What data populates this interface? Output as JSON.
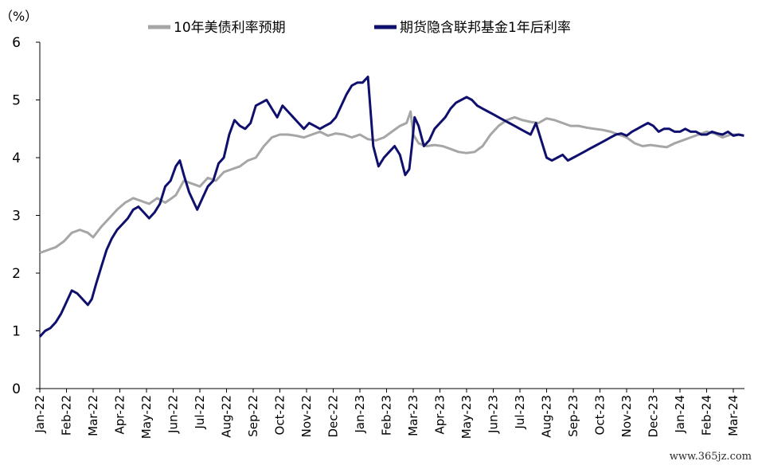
{
  "chart_data": {
    "type": "line",
    "y_unit_label": "（%）",
    "ylim": [
      0,
      6
    ],
    "y_ticks": [
      "0",
      "1",
      "2",
      "3",
      "4",
      "5",
      "6"
    ],
    "x_ticks": [
      "Jan-22",
      "Feb-22",
      "Mar-22",
      "Apr-22",
      "May-22",
      "Jun-22",
      "Jul-22",
      "Aug-22",
      "Sep-22",
      "Oct-22",
      "Nov-22",
      "Dec-22",
      "Jan-23",
      "Feb-23",
      "Mar-23",
      "Apr-23",
      "May-23",
      "Jun-23",
      "Jul-23",
      "Aug-23",
      "Sep-23",
      "Oct-23",
      "Nov-23",
      "Dec-23",
      "Jan-24",
      "Feb-24",
      "Mar-24"
    ],
    "grid": false,
    "legend_position": "top",
    "series": [
      {
        "name": "10年美债利率预期",
        "color": "#a6a6a6",
        "x": [
          0,
          0.3,
          0.6,
          0.9,
          1.2,
          1.5,
          1.8,
          2.0,
          2.3,
          2.6,
          2.9,
          3.2,
          3.5,
          3.8,
          4.1,
          4.4,
          4.7,
          4.95,
          5.1,
          5.4,
          5.7,
          6.0,
          6.3,
          6.6,
          6.9,
          7.2,
          7.5,
          7.8,
          8.1,
          8.4,
          8.7,
          9.0,
          9.3,
          9.6,
          9.9,
          10.2,
          10.5,
          10.8,
          11.1,
          11.4,
          11.7,
          12.0,
          12.3,
          12.6,
          12.9,
          13.2,
          13.5,
          13.75,
          13.9,
          14.0,
          14.2,
          14.5,
          14.8,
          15.1,
          15.4,
          15.7,
          16.0,
          16.3,
          16.6,
          16.9,
          17.2,
          17.5,
          17.8,
          18.1,
          18.4,
          18.7,
          19.0,
          19.3,
          19.6,
          19.9,
          20.2,
          20.5,
          20.8,
          21.1,
          21.4,
          21.7,
          22.0,
          22.3,
          22.6,
          22.9,
          23.2,
          23.5,
          23.8,
          24.1,
          24.4,
          24.7,
          25.0,
          25.3,
          25.6,
          25.9,
          26.2,
          26.4
        ],
        "values": [
          2.35,
          2.4,
          2.45,
          2.55,
          2.7,
          2.75,
          2.7,
          2.62,
          2.8,
          2.95,
          3.1,
          3.22,
          3.3,
          3.25,
          3.2,
          3.3,
          3.22,
          3.3,
          3.35,
          3.6,
          3.55,
          3.5,
          3.65,
          3.6,
          3.75,
          3.8,
          3.85,
          3.95,
          4.0,
          4.2,
          4.35,
          4.4,
          4.4,
          4.38,
          4.35,
          4.4,
          4.45,
          4.38,
          4.42,
          4.4,
          4.35,
          4.4,
          4.32,
          4.3,
          4.35,
          4.45,
          4.55,
          4.6,
          4.8,
          4.4,
          4.25,
          4.2,
          4.22,
          4.2,
          4.15,
          4.1,
          4.08,
          4.1,
          4.2,
          4.4,
          4.55,
          4.65,
          4.7,
          4.65,
          4.62,
          4.6,
          4.68,
          4.65,
          4.6,
          4.55,
          4.55,
          4.52,
          4.5,
          4.48,
          4.45,
          4.4,
          4.35,
          4.25,
          4.2,
          4.22,
          4.2,
          4.18,
          4.25,
          4.3,
          4.35,
          4.4,
          4.45,
          4.42,
          4.35,
          4.4,
          4.4,
          4.38
        ]
      },
      {
        "name": "期货隐含联邦基金1年后利率",
        "color": "#0f0f6e",
        "x": [
          0,
          0.2,
          0.4,
          0.6,
          0.8,
          1.0,
          1.2,
          1.4,
          1.6,
          1.8,
          1.95,
          2.1,
          2.3,
          2.5,
          2.7,
          2.9,
          3.1,
          3.3,
          3.5,
          3.7,
          3.9,
          4.1,
          4.3,
          4.5,
          4.7,
          4.9,
          5.1,
          5.25,
          5.4,
          5.6,
          5.8,
          5.9,
          6.1,
          6.3,
          6.5,
          6.7,
          6.9,
          7.1,
          7.3,
          7.5,
          7.7,
          7.9,
          8.1,
          8.3,
          8.5,
          8.7,
          8.9,
          9.1,
          9.3,
          9.5,
          9.7,
          9.9,
          10.1,
          10.3,
          10.5,
          10.7,
          10.9,
          11.1,
          11.3,
          11.5,
          11.7,
          11.9,
          12.1,
          12.3,
          12.5,
          12.7,
          12.9,
          13.1,
          13.3,
          13.5,
          13.7,
          13.85,
          13.95,
          14.05,
          14.2,
          14.4,
          14.6,
          14.8,
          15.0,
          15.2,
          15.4,
          15.6,
          15.8,
          16.0,
          16.2,
          16.4,
          16.6,
          16.8,
          17.0,
          17.2,
          17.4,
          17.6,
          17.8,
          18.0,
          18.2,
          18.4,
          18.6,
          18.8,
          19.0,
          19.2,
          19.4,
          19.6,
          19.8,
          20.0,
          20.2,
          20.4,
          20.6,
          20.8,
          21.0,
          21.2,
          21.4,
          21.6,
          21.8,
          22.0,
          22.2,
          22.4,
          22.6,
          22.8,
          23.0,
          23.2,
          23.4,
          23.6,
          23.8,
          24.0,
          24.2,
          24.4,
          24.6,
          24.8,
          25.0,
          25.2,
          25.4,
          25.6,
          25.8,
          26.0,
          26.2,
          26.4
        ],
        "values": [
          0.9,
          1.0,
          1.05,
          1.15,
          1.3,
          1.5,
          1.7,
          1.65,
          1.55,
          1.45,
          1.55,
          1.8,
          2.1,
          2.4,
          2.6,
          2.75,
          2.85,
          2.95,
          3.1,
          3.15,
          3.05,
          2.95,
          3.05,
          3.2,
          3.5,
          3.6,
          3.85,
          3.95,
          3.7,
          3.4,
          3.2,
          3.1,
          3.3,
          3.5,
          3.6,
          3.9,
          4.0,
          4.4,
          4.65,
          4.55,
          4.5,
          4.6,
          4.9,
          4.95,
          5.0,
          4.85,
          4.7,
          4.9,
          4.8,
          4.7,
          4.6,
          4.5,
          4.6,
          4.55,
          4.5,
          4.55,
          4.6,
          4.7,
          4.9,
          5.1,
          5.25,
          5.3,
          5.3,
          5.4,
          4.2,
          3.85,
          4.0,
          4.1,
          4.2,
          4.05,
          3.7,
          3.8,
          4.2,
          4.7,
          4.55,
          4.2,
          4.3,
          4.5,
          4.6,
          4.7,
          4.85,
          4.95,
          5.0,
          5.05,
          5.0,
          4.9,
          4.85,
          4.8,
          4.75,
          4.7,
          4.65,
          4.6,
          4.55,
          4.5,
          4.45,
          4.4,
          4.6,
          4.3,
          4.0,
          3.95,
          4.0,
          4.05,
          3.95,
          4.0,
          4.05,
          4.1,
          4.15,
          4.2,
          4.25,
          4.3,
          4.35,
          4.4,
          4.42,
          4.38,
          4.45,
          4.5,
          4.55,
          4.6,
          4.55,
          4.45,
          4.5,
          4.5,
          4.45,
          4.45,
          4.5,
          4.45,
          4.45,
          4.4,
          4.4,
          4.45,
          4.42,
          4.4,
          4.45,
          4.38,
          4.4,
          4.38
        ]
      }
    ]
  },
  "watermark": "www.365jz.com"
}
